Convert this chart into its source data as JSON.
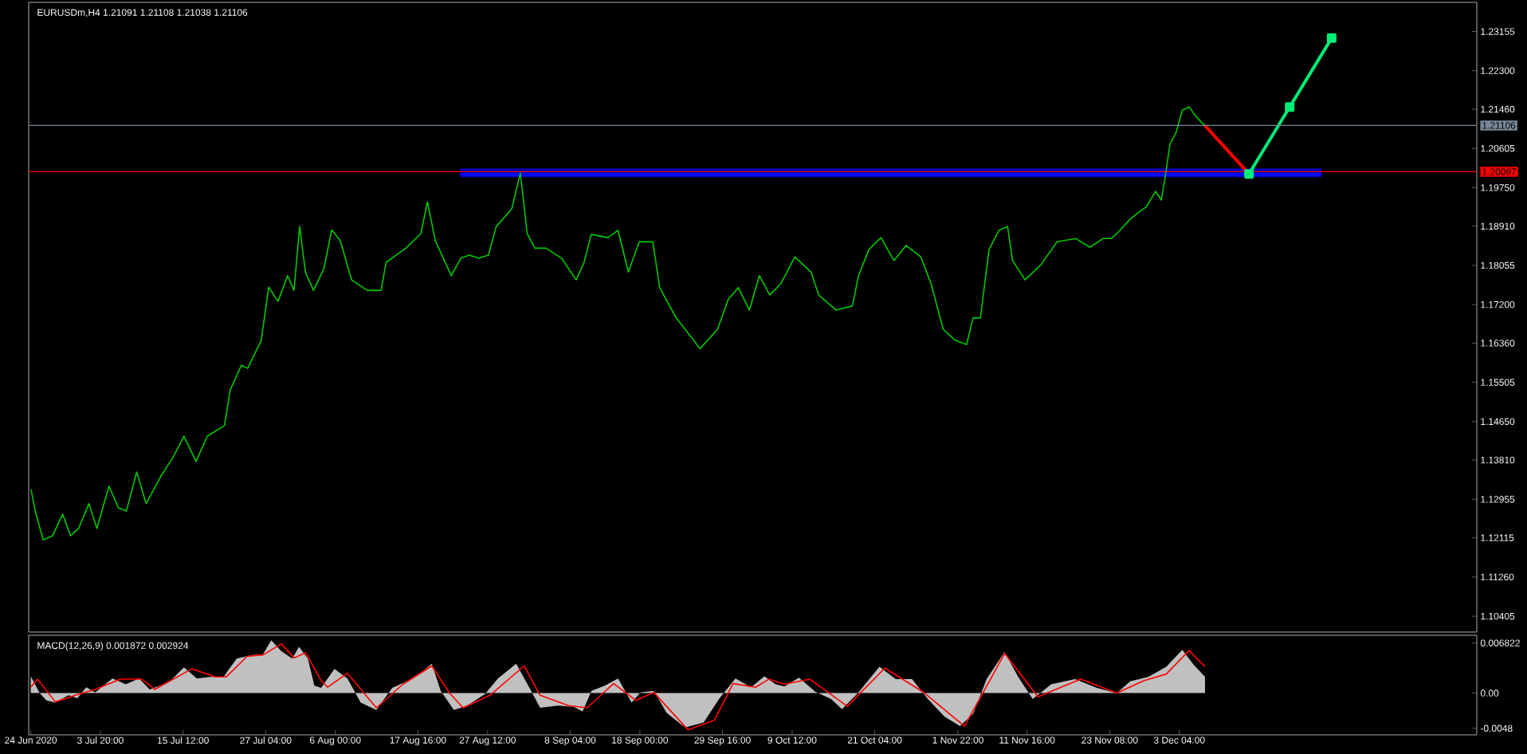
{
  "chart_data": [
    {
      "type": "line",
      "title": "EURUSDm,H4  1.21091 1.21108 1.21038 1.21106",
      "xlim": [
        "2020-06-23T17:00",
        "2021-01-14T04:00"
      ],
      "ylim": [
        1.1006,
        1.2379
      ],
      "tick_labels": "y",
      "grid": false,
      "xticks": [
        {
          "value": "2020-06-24T00:00",
          "label": null
        },
        {
          "value": "2020-07-03T20:00",
          "label": null
        },
        {
          "value": "2020-07-15T12:00",
          "label": null
        },
        {
          "value": "2020-07-27T04:00",
          "label": null
        },
        {
          "value": "2020-08-06T00:00",
          "label": null
        },
        {
          "value": "2020-08-17T16:00",
          "label": null
        },
        {
          "value": "2020-08-27T12:00",
          "label": null
        },
        {
          "value": "2020-09-08T04:00",
          "label": null
        },
        {
          "value": "2020-09-18T00:00",
          "label": null
        },
        {
          "value": "2020-09-29T16:00",
          "label": null
        },
        {
          "value": "2020-10-09T12:00",
          "label": null
        },
        {
          "value": "2020-10-21T04:00",
          "label": null
        },
        {
          "value": "2020-11-01T22:00",
          "label": null
        },
        {
          "value": "2020-11-11T16:00",
          "label": null
        },
        {
          "value": "2020-11-23T08:00",
          "label": null
        },
        {
          "value": "2020-12-03T04:00",
          "label": null
        }
      ],
      "yticks": [
        1.23155,
        {
          "value": 1.223,
          "label": "1.22300"
        },
        {
          "value": 1.2146,
          "label": "1.21460"
        },
        1.20605,
        {
          "value": 1.1975,
          "label": "1.19750"
        },
        {
          "value": 1.1891,
          "label": "1.18910"
        },
        1.18055,
        {
          "value": 1.172,
          "label": "1.17200"
        },
        {
          "value": 1.1636,
          "label": "1.16360"
        },
        1.15505,
        {
          "value": 1.1465,
          "label": "1.14650"
        },
        {
          "value": 1.1381,
          "label": "1.13810"
        },
        1.12955,
        1.12115,
        {
          "value": 1.1126,
          "label": "1.11260"
        },
        1.10405
      ],
      "ref_lines": [
        {
          "axis": "y",
          "value": 1.21106,
          "label": "1.21106",
          "color": "#778899"
        },
        {
          "axis": "y",
          "value": 1.20097,
          "label": "1.20097",
          "color": "#ff0000"
        }
      ],
      "series": [
        {
          "color": "#00c800",
          "x": [
            "2020-06-24T01:00",
            "2020-06-24T15:00",
            "2020-06-25T18:00",
            "2020-06-27T02:00",
            "2020-06-28T12:00",
            "2020-06-29T15:00",
            "2020-06-30T18:00",
            "2020-07-02T05:00",
            "2020-07-03T08:00",
            "2020-07-05T01:00",
            "2020-07-06T09:00",
            "2020-07-07T12:00",
            "2020-07-08T23:00",
            "2020-07-10T07:00",
            "2020-07-12T11:00",
            "2020-07-14T01:00",
            "2020-07-15T15:00",
            "2020-07-17T08:00",
            "2020-07-18T22:00",
            "2020-07-21T08:00",
            "2020-07-22T04:00",
            "2020-07-23T18:00",
            "2020-07-24T15:00",
            "2020-07-26T13:00",
            "2020-07-27T14:00",
            "2020-07-28T22:00",
            "2020-07-30T06:00",
            "2020-07-31T04:00",
            "2020-07-31T23:00",
            "2020-08-01T19:00",
            "2020-08-02T22:00",
            "2020-08-04T09:00",
            "2020-08-05T12:00",
            "2020-08-06T17:00",
            "2020-08-08T07:00",
            "2020-08-10T12:00",
            "2020-08-12T11:00",
            "2020-08-13T04:00",
            "2020-08-15T23:00",
            "2020-08-18T02:00",
            "2020-08-19T00:00",
            "2020-08-20T03:00",
            "2020-08-22T09:00",
            "2020-08-23T17:00",
            "2020-08-24T22:00",
            "2020-08-26T06:00",
            "2020-08-27T15:00",
            "2020-08-28T17:00",
            "2020-08-30T22:00",
            "2020-09-01T03:00",
            "2020-09-02T02:00",
            "2020-09-03T04:00",
            "2020-09-04T18:00",
            "2020-09-06T23:00",
            "2020-09-09T00:00",
            "2020-09-10T03:00",
            "2020-09-11T03:00",
            "2020-09-13T12:00",
            "2020-09-14T22:00",
            "2020-09-16T09:00",
            "2020-09-17T22:00",
            "2020-09-19T20:00",
            "2020-09-20T19:00",
            "2020-09-23T03:00",
            "2020-09-24T19:00",
            "2020-09-26T12:00",
            "2020-09-28T23:00",
            "2020-09-30T12:00",
            "2020-10-01T22:00",
            "2020-10-03T11:00",
            "2020-10-04T21:00",
            "2020-10-06T08:00",
            "2020-10-07T21:00",
            "2020-10-09T21:00",
            "2020-10-12T04:00",
            "2020-10-13T06:00",
            "2020-10-15T17:00",
            "2020-10-18T00:00",
            "2020-10-18T21:00",
            "2020-10-20T08:00",
            "2020-10-22T01:00",
            "2020-10-23T21:00",
            "2020-10-25T14:00",
            "2020-10-27T16:00",
            "2020-10-29T03:00",
            "2020-10-30T20:00",
            "2020-11-01T13:00",
            "2020-11-03T03:00",
            "2020-11-04T01:00",
            "2020-11-05T02:00",
            "2020-11-06T07:00",
            "2020-11-07T17:00",
            "2020-11-08T22:00",
            "2020-11-09T15:00",
            "2020-11-11T09:00",
            "2020-11-13T15:00",
            "2020-11-15T22:00",
            "2020-11-18T14:00",
            "2020-11-20T13:00",
            "2020-11-22T09:00",
            "2020-11-23T13:00",
            "2020-11-24T13:00",
            "2020-11-26T05:00",
            "2020-11-27T08:00",
            "2020-11-28T13:00",
            "2020-11-29T19:00",
            "2020-11-30T15:00",
            "2020-12-01T05:00",
            "2020-12-01T20:00",
            "2020-12-02T18:00",
            "2020-12-03T14:00",
            "2020-12-04T14:00",
            "2020-12-05T10:00",
            "2020-12-06T06:00",
            "2020-12-06T18:00"
          ],
          "values": [
            1.1317,
            1.127,
            1.1207,
            1.1216,
            1.1263,
            1.1216,
            1.1232,
            1.1286,
            1.1232,
            1.1324,
            1.1277,
            1.127,
            1.1355,
            1.1286,
            1.1348,
            1.1386,
            1.1433,
            1.1378,
            1.1433,
            1.1456,
            1.1534,
            1.1588,
            1.1581,
            1.1642,
            1.1758,
            1.1727,
            1.1783,
            1.1751,
            1.189,
            1.179,
            1.1751,
            1.1798,
            1.1883,
            1.1859,
            1.1774,
            1.1751,
            1.1751,
            1.1812,
            1.1843,
            1.1875,
            1.1944,
            1.1859,
            1.1783,
            1.1821,
            1.1828,
            1.1821,
            1.1828,
            1.189,
            1.1929,
            1.2007,
            1.1875,
            1.1843,
            1.1843,
            1.1821,
            1.1774,
            1.1812,
            1.1873,
            1.1866,
            1.1882,
            1.1791,
            1.1857,
            1.1857,
            1.1757,
            1.1691,
            1.1658,
            1.1624,
            1.1666,
            1.1732,
            1.1757,
            1.1708,
            1.1783,
            1.1741,
            1.1765,
            1.1824,
            1.1791,
            1.1741,
            1.1708,
            1.1717,
            1.1783,
            1.184,
            1.1866,
            1.1816,
            1.1849,
            1.1824,
            1.1765,
            1.1666,
            1.1642,
            1.1633,
            1.1691,
            1.1691,
            1.184,
            1.1882,
            1.189,
            1.1816,
            1.1774,
            1.1807,
            1.1857,
            1.1864,
            1.1845,
            1.1864,
            1.1864,
            1.1878,
            1.1906,
            1.192,
            1.1934,
            1.1967,
            1.1948,
            1.2002,
            1.2069,
            1.2097,
            1.2144,
            1.2151,
            1.2132,
            1.2118,
            1.2111
          ]
        },
        {
          "type": "line",
          "color": "#0000ff",
          "x": [
            "2020-08-23T15:00",
            "2020-12-23T06:00"
          ],
          "values": [
            1.2003,
            1.2003
          ],
          "lower": [
            1.1998,
            1.1998
          ],
          "upper": [
            1.2017,
            1.2017
          ]
        },
        {
          "type": "line",
          "color": "#ff0000",
          "x": [
            "2020-12-06T18:00",
            "2020-12-13T00:00"
          ],
          "values": [
            1.2111,
            1.2005
          ]
        },
        {
          "type": "line",
          "color": "#00ee76",
          "marker": "square",
          "x": [
            "2020-12-13T00:00",
            "2020-12-18T18:00",
            "2020-12-24T16:00"
          ],
          "values": [
            1.2005,
            1.2151,
            1.2301
          ]
        }
      ]
    },
    {
      "type": "area",
      "title": "MACD(12,26,9) 0.001872 0.002924",
      "xlim": [
        "2020-06-23T17:00",
        "2021-01-14T04:00"
      ],
      "ylim": [
        -0.00569,
        0.00788
      ],
      "grid": false,
      "yticks": [
        0.006822,
        {
          "value": 0,
          "label": "0.00"
        },
        -0.0048
      ],
      "xticks": [
        {
          "value": "2020-06-24T00:00",
          "label": "24 Jun 2020"
        },
        {
          "value": "2020-07-03T20:00",
          "label": "3 Jul 20:00"
        },
        {
          "value": "2020-07-15T12:00",
          "label": "15 Jul 12:00"
        },
        {
          "value": "2020-07-27T04:00",
          "label": "27 Jul 04:00"
        },
        {
          "value": "2020-08-06T00:00",
          "label": "6 Aug 00:00"
        },
        {
          "value": "2020-08-17T16:00",
          "label": "17 Aug 16:00"
        },
        {
          "value": "2020-08-27T12:00",
          "label": "27 Aug 12:00"
        },
        {
          "value": "2020-09-08T04:00",
          "label": "8 Sep 04:00"
        },
        {
          "value": "2020-09-18T00:00",
          "label": "18 Sep 00:00"
        },
        {
          "value": "2020-09-29T16:00",
          "label": "29 Sep 16:00"
        },
        {
          "value": "2020-10-09T12:00",
          "label": "9 Oct 12:00"
        },
        {
          "value": "2020-10-21T04:00",
          "label": "21 Oct 04:00"
        },
        {
          "value": "2020-11-01T22:00",
          "label": "1 Nov 22:00"
        },
        {
          "value": "2020-11-11T16:00",
          "label": "11 Nov 16:00"
        },
        {
          "value": "2020-11-23T08:00",
          "label": "23 Nov 08:00"
        },
        {
          "value": "2020-12-03T04:00",
          "label": "3 Dec 04:00"
        }
      ],
      "series": [
        {
          "color": "#c0c0c0",
          "x": [
            "2020-06-24T00:00",
            "2020-06-25T06:00",
            "2020-06-26T05:00",
            "2020-06-27T11:00",
            "2020-06-29T08:00",
            "2020-06-30T14:00",
            "2020-07-01T20:00",
            "2020-07-03T02:00",
            "2020-07-05T13:00",
            "2020-07-07T10:00",
            "2020-07-09T07:00",
            "2020-07-10T19:00",
            "2020-07-12T06:00",
            "2020-07-13T18:00",
            "2020-07-15T15:00",
            "2020-07-17T11:00",
            "2020-07-19T08:00",
            "2020-07-21T05:00",
            "2020-07-23T02:00",
            "2020-07-25T07:00",
            "2020-07-26T19:00",
            "2020-07-27T23:00",
            "2020-07-29T09:00",
            "2020-07-30T22:00",
            "2020-07-31T21:00",
            "2020-08-02T03:00",
            "2020-08-03T01:00",
            "2020-08-04T00:00",
            "2020-08-05T21:00",
            "2020-08-07T17:00",
            "2020-08-09T14:00",
            "2020-08-11T19:00",
            "2020-08-14T01:00",
            "2020-08-16T07:00",
            "2020-08-18T09:00",
            "2020-08-19T15:00",
            "2020-08-20T21:00",
            "2020-08-22T18:00",
            "2020-08-24T16:00",
            "2020-08-27T04:00",
            "2020-08-28T23:00",
            "2020-08-31T13:00",
            "2020-09-02T10:00",
            "2020-09-03T22:00",
            "2020-09-06T12:00",
            "2020-09-08T16:00",
            "2020-09-09T22:00",
            "2020-09-11T04:00",
            "2020-09-13T01:00",
            "2020-09-14T22:00",
            "2020-09-16T20:00",
            "2020-09-18T02:00",
            "2020-09-19T23:00",
            "2020-09-21T19:00",
            "2020-09-24T09:00",
            "2020-09-27T00:00",
            "2020-09-29T06:00",
            "2020-10-01T12:00",
            "2020-10-03T17:00",
            "2020-10-05T14:00",
            "2020-10-07T04:00",
            "2020-10-08T10:00",
            "2020-10-10T11:00",
            "2020-10-12T18:00",
            "2020-10-15T00:00",
            "2020-10-16T13:00",
            "2020-10-18T19:00",
            "2020-10-21T20:00",
            "2020-10-24T03:00",
            "2020-10-26T10:00",
            "2020-10-28T16:00",
            "2020-10-31T00:00",
            "2020-11-02T05:00",
            "2020-11-04T02:00",
            "2020-11-05T23:00",
            "2020-11-08T12:00",
            "2020-11-10T10:00",
            "2020-11-12T11:00",
            "2020-11-15T02:00",
            "2020-11-18T11:00",
            "2020-11-21T12:00",
            "2020-11-24T08:00",
            "2020-11-26T06:00",
            "2020-11-28T19:00",
            "2020-12-01T08:00",
            "2020-12-03T14:00",
            "2020-12-05T04:00",
            "2020-12-06T19:00"
          ],
          "values": [
            0.0023,
            0,
            -0.001,
            -0.0013,
            -0.0003,
            -0.0007,
            0.0008,
            0.0001,
            0.002,
            0.0012,
            0.002,
            0.0005,
            0.001,
            0.0017,
            0.0035,
            0.002,
            0.0022,
            0.0022,
            0.0047,
            0.0052,
            0.0053,
            0.0072,
            0.0057,
            0.0047,
            0.0063,
            0.0047,
            0.001,
            0.0007,
            0.0033,
            0.002,
            -0.0013,
            -0.0023,
            0.0007,
            0.0017,
            0.003,
            0.004,
            0.0003,
            -0.0023,
            -0.0017,
            -0.0001,
            0.002,
            0.004,
            0.0007,
            -0.002,
            -0.0017,
            -0.0019,
            -0.0025,
            0.0003,
            0.001,
            0.002,
            -0.0013,
            0.0001,
            0.0003,
            -0.0027,
            -0.0047,
            -0.004,
            -0.0007,
            0.002,
            0.0008,
            0.0023,
            0.0012,
            0.0009,
            0.0021,
            0.0002,
            -0.0008,
            -0.0022,
            0,
            0.0036,
            0.0019,
            0.0019,
            -0.0008,
            -0.0032,
            -0.0045,
            -0.0028,
            0.0019,
            0.0056,
            0.0022,
            -0.0008,
            0.0012,
            0.0019,
            0.0007,
            0,
            0.0016,
            0.0022,
            0.0036,
            0.0059,
            0.0039,
            0.0022
          ]
        },
        {
          "type": "line",
          "color": "#ff0000",
          "x": [
            "2020-06-24T00:00",
            "2020-06-24T23:00",
            "2020-06-27T11:00",
            "2020-06-30T14:00",
            "2020-07-03T02:00",
            "2020-07-06T16:00",
            "2020-07-09T16:00",
            "2020-07-11T12:00",
            "2020-07-16T18:00",
            "2020-07-20T02:00",
            "2020-07-21T14:00",
            "2020-07-24T13:00",
            "2020-07-26T19:00",
            "2020-07-29T09:00",
            "2020-07-31T05:00",
            "2020-08-01T19:00",
            "2020-08-04T00:00",
            "2020-08-04T22:00",
            "2020-08-07T17:00",
            "2020-08-11T19:00",
            "2020-08-15T13:00",
            "2020-08-19T15:00",
            "2020-08-22T03:00",
            "2020-08-24T01:00",
            "2020-08-27T20:00",
            "2020-09-01T16:00",
            "2020-09-03T22:00",
            "2020-09-07T22:00",
            "2020-09-10T13:00",
            "2020-09-14T07:00",
            "2020-09-17T11:00",
            "2020-09-19T23:00",
            "2020-09-24T19:00",
            "2020-09-28T12:00",
            "2020-10-01T04:00",
            "2020-10-04T08:00",
            "2020-10-06T05:00",
            "2020-10-08T10:00",
            "2020-10-12T00:00",
            "2020-10-17T07:00",
            "2020-10-22T14:00",
            "2020-10-27T22:00",
            "2020-11-02T20:00",
            "2020-11-08T12:00",
            "2020-11-13T05:00",
            "2020-11-19T06:00",
            "2020-11-24T08:00",
            "2020-11-28T04:00",
            "2020-12-01T08:00",
            "2020-12-04T13:00",
            "2020-12-06T19:00"
          ],
          "values": [
            0.0008,
            0.0019,
            -0.0012,
            -0.0002,
            0.0005,
            0.0019,
            0.0019,
            0.0005,
            0.0033,
            0.0022,
            0.0022,
            0.005,
            0.0052,
            0.0067,
            0.0048,
            0.0055,
            0.0017,
            0.0008,
            0.0027,
            -0.002,
            0.0012,
            0.0037,
            0,
            -0.002,
            -0.0003,
            0.0037,
            -0.0003,
            -0.0017,
            -0.002,
            0.0013,
            -0.001,
            0.0001,
            -0.005,
            -0.0037,
            0.0013,
            0.0008,
            0.0019,
            0.0012,
            0.0019,
            -0.0018,
            0.0034,
            0.0002,
            -0.0045,
            0.0054,
            -0.0005,
            0.0019,
            0,
            0.0017,
            0.0026,
            0.0058,
            0.0036
          ]
        }
      ]
    }
  ]
}
